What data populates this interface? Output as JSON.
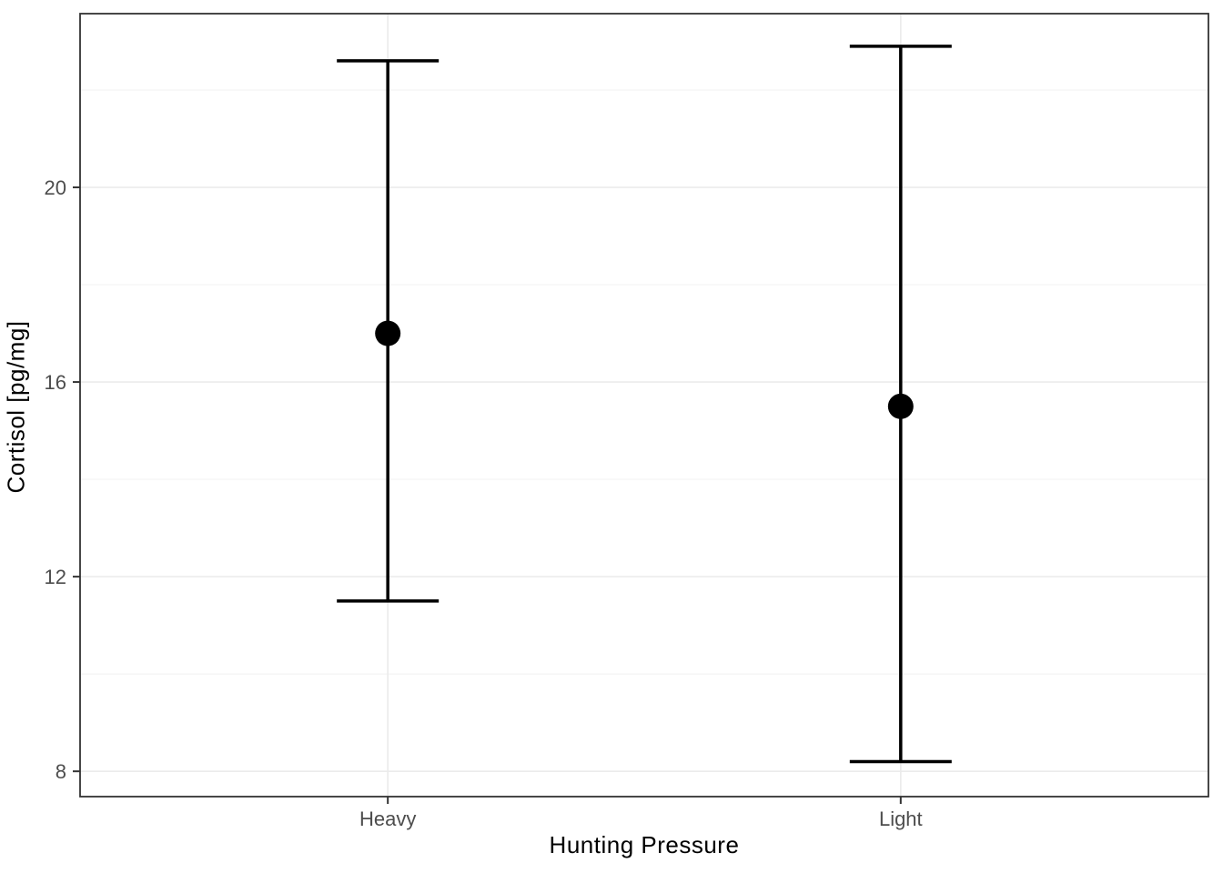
{
  "chart_data": {
    "type": "pointrange",
    "title": "",
    "xlabel": "Hunting Pressure",
    "ylabel": "Cortisol [pg/mg]",
    "categories": [
      "Heavy",
      "Light"
    ],
    "points": [
      {
        "category": "Heavy",
        "mean": 17.0,
        "lower": 11.5,
        "upper": 22.6
      },
      {
        "category": "Light",
        "mean": 15.5,
        "lower": 8.2,
        "upper": 22.9
      }
    ],
    "y_ticks": [
      8,
      12,
      16,
      20
    ],
    "y_minor_gridlines": [
      10,
      14,
      18,
      22
    ],
    "ylim": [
      7.48,
      23.57
    ],
    "grid": true,
    "legend": "none",
    "style": {
      "point_color": "#000000",
      "errorbar_color": "#000000",
      "panel_background": "#ffffff",
      "panel_border_color": "#333333",
      "grid_major_color": "#ebebeb",
      "grid_minor_color": "#f5f5f5",
      "tick_mark_color": "#333333",
      "tick_label_color": "#4d4d4d"
    }
  }
}
